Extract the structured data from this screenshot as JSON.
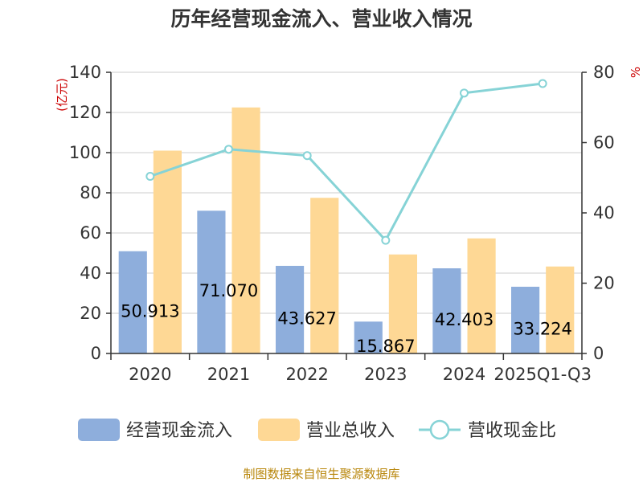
{
  "chart_data": {
    "type": "bar",
    "title": "历年经营现金流入、营业收入情况",
    "left_axis_unit": "(亿元)",
    "right_axis_unit": "%",
    "categories": [
      "2020",
      "2021",
      "2022",
      "2023",
      "2024",
      "2025Q1-Q3"
    ],
    "ylim_left": [
      0,
      140
    ],
    "yticks_left": [
      "0",
      "20",
      "40",
      "60",
      "80",
      "100",
      "120",
      "140"
    ],
    "ylim_right": [
      0,
      80
    ],
    "yticks_right": [
      "0",
      "20",
      "40",
      "60",
      "80"
    ],
    "grid": true,
    "legend_position": "bottom",
    "series": [
      {
        "name": "经营现金流入",
        "kind": "bar",
        "axis": "left",
        "color": "#8eaedc",
        "values": [
          50.913,
          71.07,
          43.627,
          15.867,
          42.403,
          33.224
        ],
        "labels": [
          "50.913",
          "71.070",
          "43.627",
          "15.867",
          "42.403",
          "33.224"
        ]
      },
      {
        "name": "营业总收入",
        "kind": "bar",
        "axis": "left",
        "color": "#fed895",
        "values": [
          101,
          122.5,
          77.5,
          49.3,
          57.3,
          43.3
        ]
      },
      {
        "name": "营收现金比",
        "kind": "line",
        "axis": "right",
        "color": "#86d3d6",
        "values": [
          50.4,
          58.1,
          56.3,
          32.2,
          74.1,
          76.8
        ]
      }
    ]
  },
  "source_text": "制图数据来自恒生聚源数据库"
}
